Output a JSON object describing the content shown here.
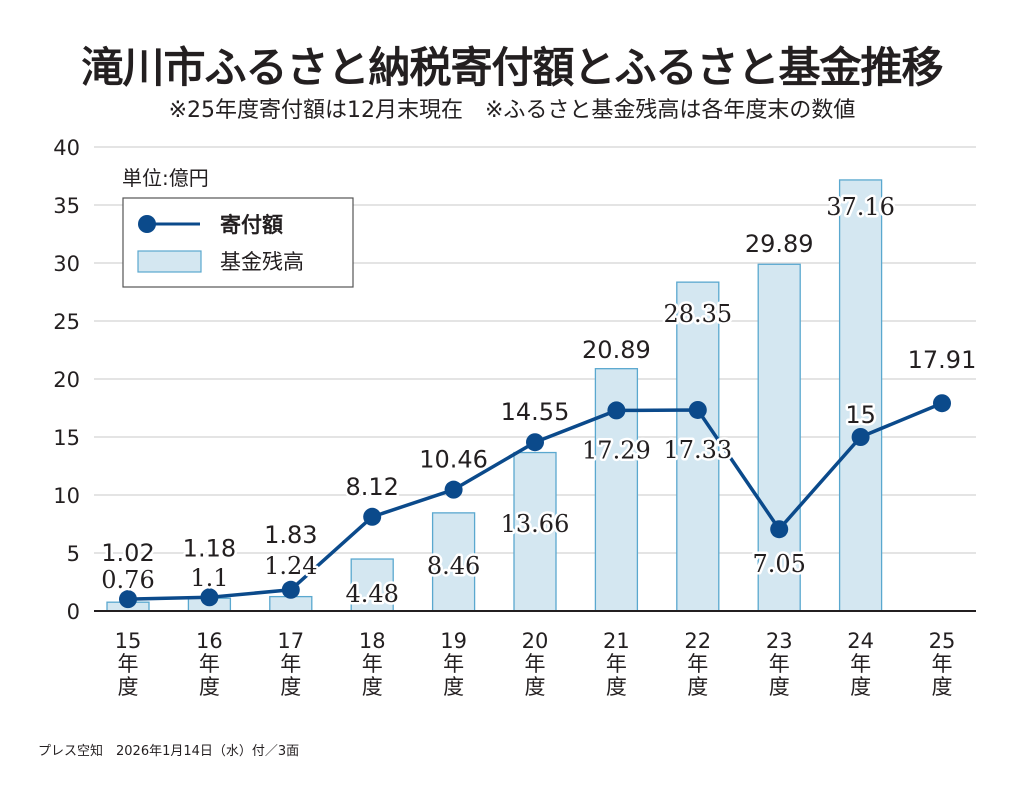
{
  "header": {
    "title": "滝川市ふるさと納税寄付額とふるさと基金推移",
    "subtitle": "※25年度寄付額は12月末現在　※ふるさと基金残高は各年度末の数値"
  },
  "footer": {
    "text": "プレス空知　2026年1月14日（水）付／3面"
  },
  "chart_data": {
    "type": "bar",
    "title": "滝川市ふるさと納税寄付額とふるさと基金推移",
    "unit_label": "単位:億円",
    "xlabel": "",
    "ylabel": "",
    "ylim": [
      0,
      40
    ],
    "yticks": [
      "0",
      "5",
      "10",
      "15",
      "20",
      "25",
      "30",
      "35",
      "40"
    ],
    "grid": true,
    "legend_position": "top-left",
    "categories": [
      {
        "num": "15",
        "suffix1": "年",
        "suffix2": "度"
      },
      {
        "num": "16",
        "suffix1": "年",
        "suffix2": "度"
      },
      {
        "num": "17",
        "suffix1": "年",
        "suffix2": "度"
      },
      {
        "num": "18",
        "suffix1": "年",
        "suffix2": "度"
      },
      {
        "num": "19",
        "suffix1": "年",
        "suffix2": "度"
      },
      {
        "num": "20",
        "suffix1": "年",
        "suffix2": "度"
      },
      {
        "num": "21",
        "suffix1": "年",
        "suffix2": "度"
      },
      {
        "num": "22",
        "suffix1": "年",
        "suffix2": "度"
      },
      {
        "num": "23",
        "suffix1": "年",
        "suffix2": "度"
      },
      {
        "num": "24",
        "suffix1": "年",
        "suffix2": "度"
      },
      {
        "num": "25",
        "suffix1": "年",
        "suffix2": "度"
      }
    ],
    "series": [
      {
        "name": "寄付額",
        "kind": "line",
        "color": "#0b4a8b",
        "values": [
          1.02,
          1.18,
          1.83,
          8.12,
          10.46,
          14.55,
          17.29,
          17.33,
          7.05,
          15,
          17.91
        ],
        "labels": [
          "1.02",
          "1.18",
          "1.83",
          "8.12",
          "10.46",
          "14.55",
          "17.29",
          "17.33",
          "7.05",
          "15",
          "17.91"
        ]
      },
      {
        "name": "基金残高",
        "kind": "bar",
        "color": "#d4e7f1",
        "edge_color": "#5aa8cf",
        "values": [
          0.76,
          1.1,
          1.24,
          4.48,
          8.46,
          13.66,
          20.89,
          28.35,
          29.89,
          37.16,
          null
        ],
        "labels": [
          "0.76",
          "1.1",
          "1.24",
          "4.48",
          "8.46",
          "13.66",
          "20.89",
          "28.35",
          "29.89",
          "37.16",
          null
        ]
      }
    ]
  }
}
